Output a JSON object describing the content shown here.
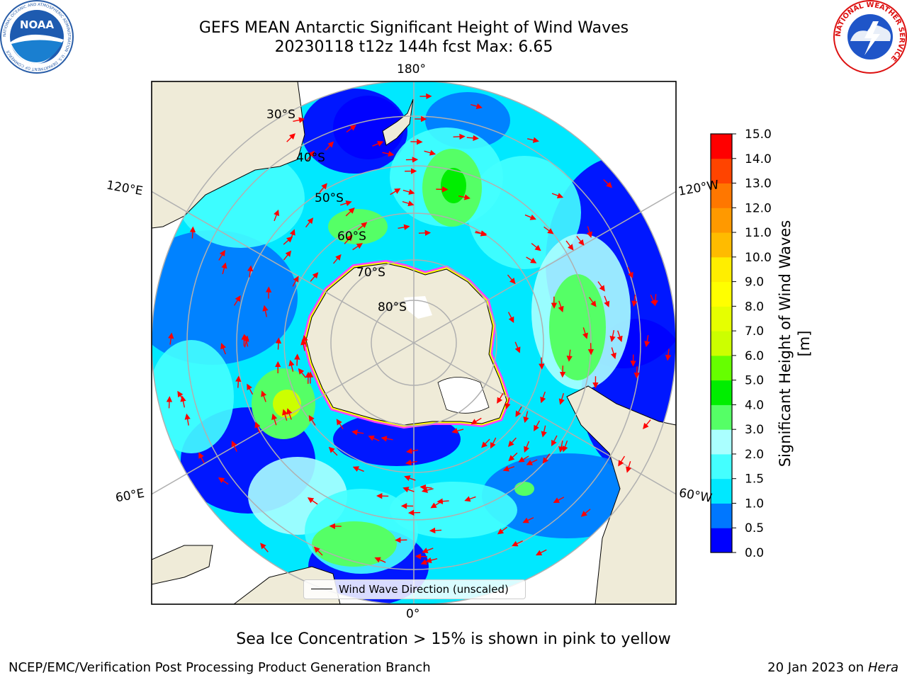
{
  "header": {
    "title_line1": "GEFS MEAN Antarctic Significant Height of Wind Waves",
    "title_line2": "20230118 t12z 144h fcst   Max: 6.65"
  },
  "logos": {
    "left": "noa-logo",
    "left_text": "NOAA",
    "left_ring_text": "NATIONAL OCEANIC AND ATMOSPHERIC ADMINISTRATION · U.S. DEPARTMENT OF COMMERCE",
    "right": "nws-logo",
    "right_ring_text": "NATIONAL WEATHER SERVICE"
  },
  "map": {
    "projection": "south-polar-stereographic",
    "longitude_labels": {
      "top": "180°",
      "bottom": "0°",
      "upper_left": "120°E",
      "lower_left": "60°E",
      "upper_right": "120°W",
      "lower_right": "60°W"
    },
    "latitude_labels": [
      "30°S",
      "40°S",
      "50°S",
      "60°S",
      "70°S",
      "80°S"
    ],
    "colors": {
      "land": "#efebd8",
      "ice_edge_1": "#ff40ff",
      "ice_edge_2": "#ffff00",
      "graticule": "#b0b0b0",
      "arrow": "#ff0000"
    },
    "legend_label": "Wind Wave Direction (unscaled)"
  },
  "colorbar": {
    "title": "Significant Height of Wind Waves [m]",
    "ticks": [
      "0.0",
      "0.5",
      "1.0",
      "1.5",
      "2.0",
      "3.0",
      "4.0",
      "5.0",
      "6.0",
      "7.0",
      "8.0",
      "9.0",
      "10.0",
      "11.0",
      "12.0",
      "13.0",
      "14.0",
      "15.0"
    ],
    "colors": [
      "#0000ff",
      "#0077ff",
      "#00e8ff",
      "#44ffff",
      "#aaffff",
      "#55ff66",
      "#00ee00",
      "#66ff00",
      "#ccff00",
      "#e6ff00",
      "#ffff00",
      "#ffee00",
      "#ffbb00",
      "#ff9900",
      "#ff7700",
      "#ff4400",
      "#ff0000"
    ]
  },
  "note": "Sea Ice Concentration > 15% is shown in pink to yellow",
  "footer": {
    "left": "NCEP/EMC/Verification Post Processing Product Generation Branch",
    "right_date": "20 Jan 2023 on",
    "right_host": "Hera"
  }
}
